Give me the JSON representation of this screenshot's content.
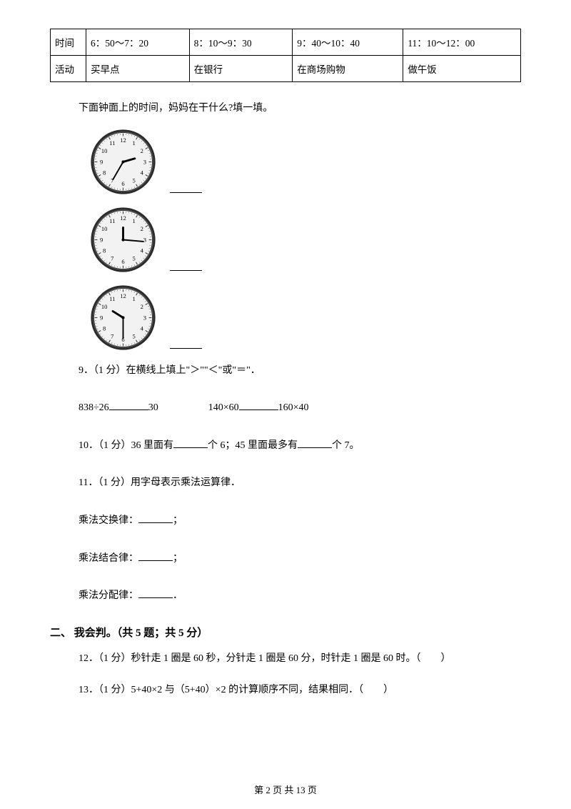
{
  "table": {
    "r1": [
      "时间",
      "6：50～7：20",
      "8：10～9：30",
      "9：40～10：40",
      "11：10～12：00"
    ],
    "r2": [
      "活动",
      "买早点",
      "在银行",
      "在商场购物",
      "做午饭"
    ]
  },
  "prompt": "下面钟面上的时间，妈妈在干什么?填一填。",
  "clocks": [
    {
      "hourAngle": -16,
      "minuteAngle": 120,
      "bg": "#ffffff",
      "face": "#f2f2f2",
      "ring": "#5a5a5a",
      "num": "#000000"
    },
    {
      "hourAngle": -90,
      "minuteAngle": 5,
      "bg": "#ffffff",
      "face": "#f2f2f2",
      "ring": "#5a5a5a",
      "num": "#000000"
    },
    {
      "hourAngle": -148,
      "minuteAngle": 90,
      "bg": "#ffffff",
      "face": "#f2f2f2",
      "ring": "#5a5a5a",
      "num": "#000000"
    }
  ],
  "q9": {
    "label": "9．（1 分）在横线上填上\"＞\"\"＜\"或\"＝\"．",
    "expr_a": "838÷26",
    "expr_a_rhs": "30",
    "expr_b": "140×60",
    "expr_b_rhs": "160×40"
  },
  "q10": {
    "pre": "10．（1 分）36 里面有",
    "mid": "个 6；45 里面最多有",
    "post": "个 7。"
  },
  "q11": {
    "head": "11．（1 分）用字母表示乘法运算律．",
    "a": "乘法交换律：",
    "b": "乘法结合律：",
    "c": "乘法分配律：",
    "semi": "；",
    "dot": "．"
  },
  "section2": "二、 我会判。（共 5 题；共 5 分）",
  "q12": "12．（1 分）秒针走 1 圈是 60 秒，分针走 1 圈是 60 分，时针走 1 圈是 60 时。（　　）",
  "q13": "13．（1 分）5+40×2 与（5+40）×2 的计算顺序不同，结果相同．（　　）",
  "footer": "第 2 页 共 13 页"
}
